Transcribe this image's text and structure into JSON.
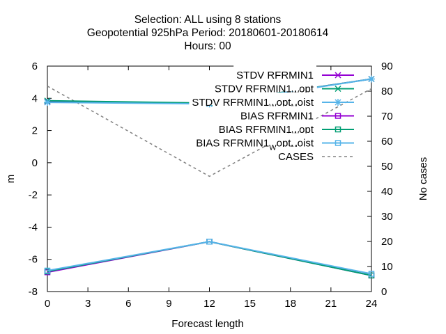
{
  "chart_data": {
    "type": "line",
    "title_lines": [
      "Selection: ALL using     8 stations",
      "Geopotential 925hPa   Period: 20180601-20180614",
      "Hours:  00"
    ],
    "xlabel": "Forecast length",
    "ylabel": "m",
    "y2label": "No cases",
    "x": [
      0,
      12,
      24
    ],
    "xlim": [
      0,
      24
    ],
    "xticks": [
      "0",
      "3",
      "6",
      "9",
      "12",
      "15",
      "18",
      "21",
      "24"
    ],
    "ylim": [
      -8,
      6
    ],
    "yticks": [
      "-8",
      "-6",
      "-4",
      "-2",
      "0",
      "2",
      "4",
      "6"
    ],
    "y2lim": [
      0,
      90
    ],
    "y2ticks": [
      "0",
      "10",
      "20",
      "30",
      "40",
      "50",
      "60",
      "70",
      "80",
      "90"
    ],
    "grid": false,
    "legend_position": "top-right",
    "series": [
      {
        "label_main": "STDV RFRMIN1",
        "label_parts": [],
        "color": "#9400d3",
        "marker": "x-cross",
        "axis": "y",
        "dash": "",
        "values": [
          3.8,
          3.7,
          5.2
        ]
      },
      {
        "label_main": "STDV RFRMIN1",
        "label_parts": [
          "W",
          "opt"
        ],
        "color": "#009e73",
        "marker": "x-cross",
        "axis": "y",
        "dash": "",
        "values": [
          3.85,
          3.7,
          5.2
        ]
      },
      {
        "label_main": "STDV RFRMIN1",
        "label_parts": [
          "W",
          "opt",
          "M",
          "oist"
        ],
        "color": "#56b4e9",
        "marker": "star",
        "axis": "y",
        "dash": "",
        "values": [
          3.75,
          3.65,
          5.2
        ]
      },
      {
        "label_main": "BIAS RFRMIN1",
        "label_parts": [],
        "color": "#9400d3",
        "marker": "square",
        "axis": "y",
        "dash": "",
        "values": [
          -6.8,
          -4.9,
          -7.0
        ]
      },
      {
        "label_main": "BIAS RFRMIN1",
        "label_parts": [
          "W",
          "opt"
        ],
        "color": "#009e73",
        "marker": "square",
        "axis": "y",
        "dash": "",
        "values": [
          -6.75,
          -4.9,
          -7.0
        ]
      },
      {
        "label_main": "BIAS RFRMIN1",
        "label_parts": [
          "W",
          "opt",
          "M",
          "oist"
        ],
        "color": "#56b4e9",
        "marker": "square",
        "axis": "y",
        "dash": "",
        "values": [
          -6.7,
          -4.9,
          -6.9
        ]
      },
      {
        "label_main": "CASES",
        "label_parts": [],
        "color": "#808080",
        "marker": "none",
        "axis": "y2",
        "dash": "4,4",
        "values": [
          82,
          46,
          81
        ]
      }
    ]
  }
}
